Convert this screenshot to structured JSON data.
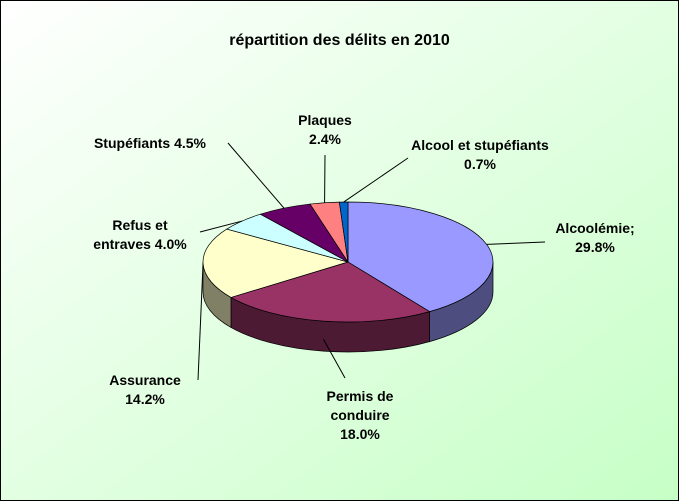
{
  "chart_data": {
    "type": "pie",
    "title": "répartition des délits en 2010",
    "categories": [
      "Alcoolémie;",
      "Permis de conduire",
      "Assurance",
      "Refus et entraves",
      "Stupéfiants",
      "Plaques",
      "Alcool et stupéfiants"
    ],
    "values": [
      29.8,
      18.0,
      14.2,
      4.0,
      4.5,
      2.4,
      0.7
    ],
    "value_labels": [
      "29.8%",
      "18.0%",
      "14.2%",
      "4.0%",
      "4.5%",
      "2.4%",
      "0.7%"
    ],
    "colors": [
      "#9999ff",
      "#993366",
      "#ffffcc",
      "#ccffff",
      "#660066",
      "#ff8080",
      "#0066cc"
    ]
  }
}
